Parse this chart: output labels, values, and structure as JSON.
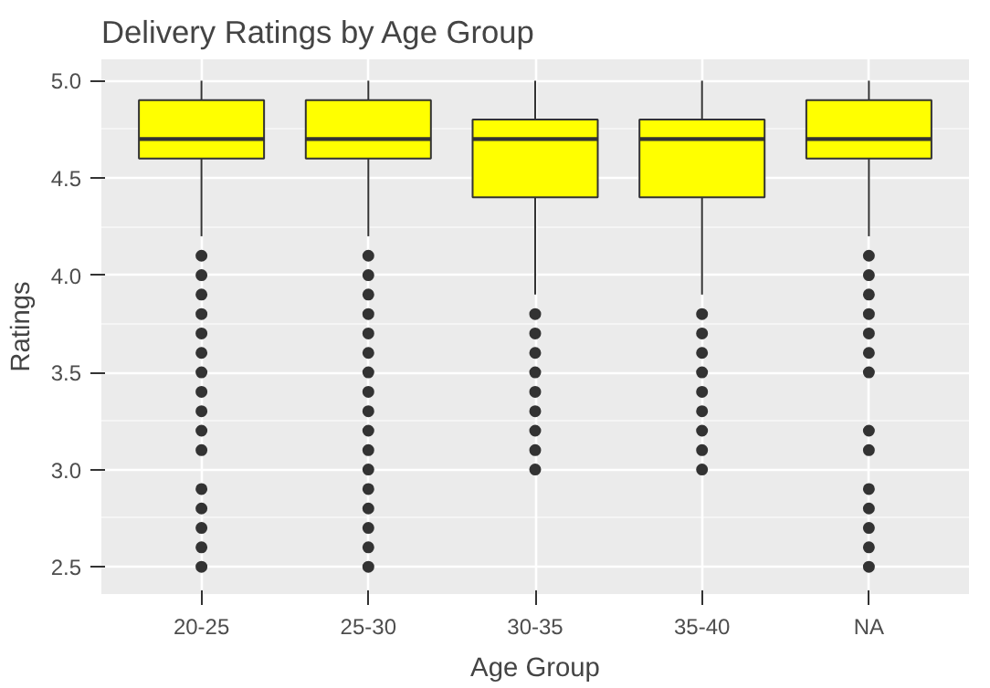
{
  "chart_data": {
    "type": "box",
    "title": "Delivery Ratings by Age Group",
    "xlabel": "Age Group",
    "ylabel": "Ratings",
    "categories": [
      "20-25",
      "25-30",
      "30-35",
      "35-40",
      "NA"
    ],
    "ylim": [
      2.36,
      5.11
    ],
    "yticks": [
      {
        "value": 2.5,
        "label": "2.5"
      },
      {
        "value": 3,
        "label": "3.0"
      },
      {
        "value": 3.5,
        "label": "3.5"
      },
      {
        "value": 4,
        "label": "4.0"
      },
      {
        "value": 4.5,
        "label": "4.5"
      },
      {
        "value": 5,
        "label": "5.0"
      }
    ],
    "grid": true,
    "color": "#ffff00",
    "boxes": [
      {
        "low": 4.2,
        "q1": 4.6,
        "median": 4.7,
        "q3": 4.9,
        "high": 5.0,
        "outliers": [
          4.1,
          4.0,
          3.9,
          3.8,
          3.7,
          3.6,
          3.5,
          3.4,
          3.3,
          3.2,
          3.1,
          2.9,
          2.8,
          2.7,
          2.6,
          2.5
        ]
      },
      {
        "low": 4.2,
        "q1": 4.6,
        "median": 4.7,
        "q3": 4.9,
        "high": 5.0,
        "outliers": [
          4.1,
          4.0,
          3.9,
          3.8,
          3.7,
          3.6,
          3.5,
          3.4,
          3.3,
          3.2,
          3.1,
          3.0,
          2.9,
          2.8,
          2.7,
          2.6,
          2.5
        ]
      },
      {
        "low": 3.9,
        "q1": 4.4,
        "median": 4.7,
        "q3": 4.8,
        "high": 5.0,
        "outliers": [
          3.8,
          3.7,
          3.6,
          3.5,
          3.4,
          3.3,
          3.2,
          3.1,
          3.0
        ]
      },
      {
        "low": 3.9,
        "q1": 4.4,
        "median": 4.7,
        "q3": 4.8,
        "high": 5.0,
        "outliers": [
          3.8,
          3.7,
          3.6,
          3.5,
          3.4,
          3.3,
          3.2,
          3.1,
          3.0
        ]
      },
      {
        "low": 4.2,
        "q1": 4.6,
        "median": 4.7,
        "q3": 4.9,
        "high": 5.0,
        "outliers": [
          4.1,
          4.0,
          3.9,
          3.8,
          3.7,
          3.6,
          3.5,
          3.2,
          3.1,
          2.9,
          2.8,
          2.7,
          2.6,
          2.5
        ]
      }
    ]
  }
}
